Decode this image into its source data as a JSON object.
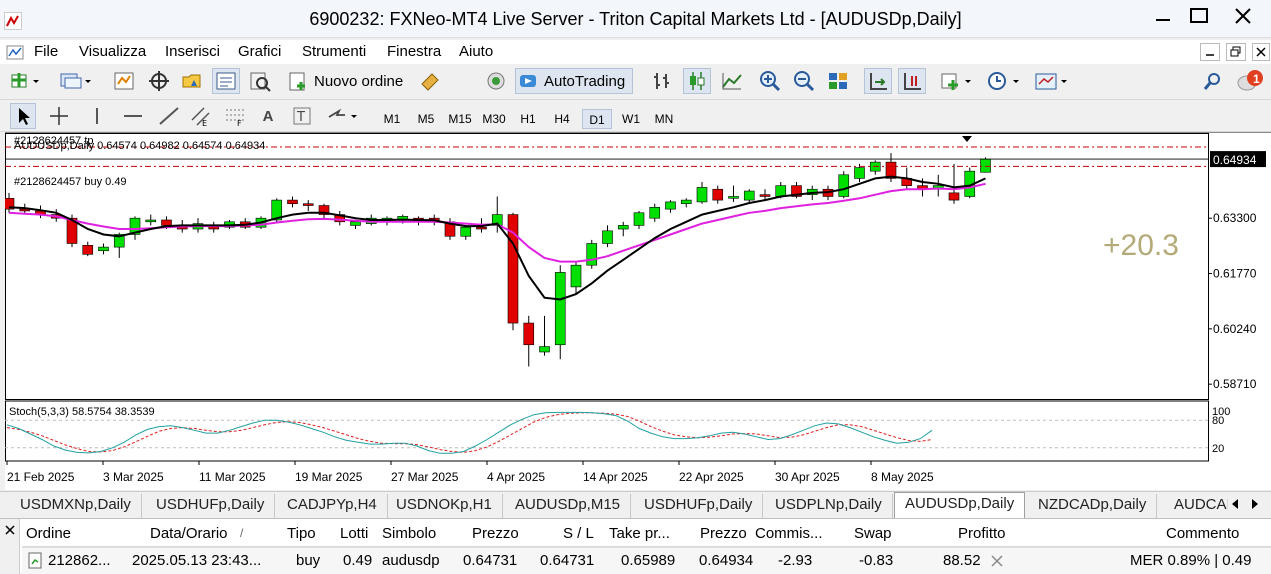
{
  "window": {
    "title": "6900232: FXNeo-MT4 Live Server - Triton Capital Markets Ltd - [AUDUSDp,Daily]"
  },
  "menu": [
    "File",
    "Visualizza",
    "Inserisci",
    "Grafici",
    "Strumenti",
    "Finestra",
    "Aiuto"
  ],
  "toolbar": {
    "new_order_label": "Nuovo ordine",
    "autotrading_label": "AutoTrading",
    "notification_count": "1"
  },
  "timeframes": [
    "M1",
    "M5",
    "M15",
    "M30",
    "H1",
    "H4",
    "D1",
    "W1",
    "MN"
  ],
  "selected_timeframe": "D1",
  "chart": {
    "header": "AUDUSDp,Daily  0.64574 0.64982 0.64574 0.64934",
    "order_id_label": "#2128624457 tp",
    "order_line_label": "#2128624457 buy 0.49",
    "current_price": "0.64934",
    "profit_overlay": "+20.3",
    "price_axis": [
      "0.63300",
      "0.61770",
      "0.60240",
      "0.58710"
    ],
    "stoch_label": "Stoch(5,3,3) 58.5754 38.3539",
    "stoch_axis": [
      "100",
      "80",
      "20"
    ],
    "date_axis": [
      "21 Feb 2025",
      "3 Mar 2025",
      "11 Mar 2025",
      "19 Mar 2025",
      "27 Mar 2025",
      "4 Apr 2025",
      "14 Apr 2025",
      "22 Apr 2025",
      "30 Apr 2025",
      "8 May 2025"
    ],
    "colors": {
      "bull": "#00e000",
      "bear": "#e00000",
      "ma_fast": "#000000",
      "ma_slow": "#e020e0",
      "stoch_main": "#20a0a0",
      "stoch_signal": "#e02020",
      "order_line": "#c00000",
      "profit": "#b4aa78"
    }
  },
  "chart_data": {
    "type": "candlestick",
    "symbol": "AUDUSDp",
    "timeframe": "Daily",
    "candles": [
      {
        "o": 0.6385,
        "h": 0.64,
        "l": 0.6345,
        "c": 0.6355
      },
      {
        "o": 0.6355,
        "h": 0.637,
        "l": 0.634,
        "c": 0.635
      },
      {
        "o": 0.635,
        "h": 0.6365,
        "l": 0.633,
        "c": 0.634
      },
      {
        "o": 0.634,
        "h": 0.6355,
        "l": 0.632,
        "c": 0.633
      },
      {
        "o": 0.633,
        "h": 0.634,
        "l": 0.625,
        "c": 0.626
      },
      {
        "o": 0.6255,
        "h": 0.6265,
        "l": 0.6225,
        "c": 0.623
      },
      {
        "o": 0.624,
        "h": 0.626,
        "l": 0.623,
        "c": 0.625
      },
      {
        "o": 0.625,
        "h": 0.629,
        "l": 0.622,
        "c": 0.6285
      },
      {
        "o": 0.6285,
        "h": 0.6335,
        "l": 0.627,
        "c": 0.633
      },
      {
        "o": 0.632,
        "h": 0.634,
        "l": 0.631,
        "c": 0.6325
      },
      {
        "o": 0.6325,
        "h": 0.6335,
        "l": 0.63,
        "c": 0.631
      },
      {
        "o": 0.631,
        "h": 0.6325,
        "l": 0.629,
        "c": 0.63
      },
      {
        "o": 0.63,
        "h": 0.633,
        "l": 0.629,
        "c": 0.6315
      },
      {
        "o": 0.631,
        "h": 0.632,
        "l": 0.629,
        "c": 0.63
      },
      {
        "o": 0.6305,
        "h": 0.6325,
        "l": 0.63,
        "c": 0.632
      },
      {
        "o": 0.632,
        "h": 0.633,
        "l": 0.63,
        "c": 0.6305
      },
      {
        "o": 0.6305,
        "h": 0.6335,
        "l": 0.63,
        "c": 0.633
      },
      {
        "o": 0.6325,
        "h": 0.6385,
        "l": 0.632,
        "c": 0.638
      },
      {
        "o": 0.638,
        "h": 0.639,
        "l": 0.636,
        "c": 0.637
      },
      {
        "o": 0.637,
        "h": 0.638,
        "l": 0.635,
        "c": 0.6365
      },
      {
        "o": 0.6365,
        "h": 0.637,
        "l": 0.633,
        "c": 0.634
      },
      {
        "o": 0.634,
        "h": 0.635,
        "l": 0.631,
        "c": 0.632
      },
      {
        "o": 0.631,
        "h": 0.6325,
        "l": 0.63,
        "c": 0.632
      },
      {
        "o": 0.6315,
        "h": 0.634,
        "l": 0.631,
        "c": 0.633
      },
      {
        "o": 0.632,
        "h": 0.6335,
        "l": 0.631,
        "c": 0.633
      },
      {
        "o": 0.6325,
        "h": 0.634,
        "l": 0.6315,
        "c": 0.6335
      },
      {
        "o": 0.633,
        "h": 0.6335,
        "l": 0.631,
        "c": 0.632
      },
      {
        "o": 0.633,
        "h": 0.634,
        "l": 0.631,
        "c": 0.632
      },
      {
        "o": 0.632,
        "h": 0.633,
        "l": 0.627,
        "c": 0.628
      },
      {
        "o": 0.628,
        "h": 0.631,
        "l": 0.627,
        "c": 0.6305
      },
      {
        "o": 0.6305,
        "h": 0.633,
        "l": 0.629,
        "c": 0.63
      },
      {
        "o": 0.631,
        "h": 0.639,
        "l": 0.629,
        "c": 0.634
      },
      {
        "o": 0.634,
        "h": 0.6345,
        "l": 0.602,
        "c": 0.604
      },
      {
        "o": 0.604,
        "h": 0.606,
        "l": 0.592,
        "c": 0.598
      },
      {
        "o": 0.596,
        "h": 0.606,
        "l": 0.595,
        "c": 0.5975
      },
      {
        "o": 0.598,
        "h": 0.62,
        "l": 0.594,
        "c": 0.618
      },
      {
        "o": 0.614,
        "h": 0.621,
        "l": 0.612,
        "c": 0.62
      },
      {
        "o": 0.62,
        "h": 0.627,
        "l": 0.619,
        "c": 0.626
      },
      {
        "o": 0.626,
        "h": 0.631,
        "l": 0.625,
        "c": 0.6295
      },
      {
        "o": 0.63,
        "h": 0.632,
        "l": 0.628,
        "c": 0.631
      },
      {
        "o": 0.631,
        "h": 0.635,
        "l": 0.63,
        "c": 0.6345
      },
      {
        "o": 0.633,
        "h": 0.637,
        "l": 0.632,
        "c": 0.636
      },
      {
        "o": 0.6355,
        "h": 0.638,
        "l": 0.6345,
        "c": 0.6375
      },
      {
        "o": 0.637,
        "h": 0.6385,
        "l": 0.636,
        "c": 0.638
      },
      {
        "o": 0.6375,
        "h": 0.643,
        "l": 0.637,
        "c": 0.6415
      },
      {
        "o": 0.641,
        "h": 0.642,
        "l": 0.637,
        "c": 0.638
      },
      {
        "o": 0.6385,
        "h": 0.642,
        "l": 0.6375,
        "c": 0.639
      },
      {
        "o": 0.638,
        "h": 0.641,
        "l": 0.637,
        "c": 0.6405
      },
      {
        "o": 0.6395,
        "h": 0.641,
        "l": 0.638,
        "c": 0.639
      },
      {
        "o": 0.639,
        "h": 0.643,
        "l": 0.6385,
        "c": 0.642
      },
      {
        "o": 0.642,
        "h": 0.643,
        "l": 0.6385,
        "c": 0.639
      },
      {
        "o": 0.6395,
        "h": 0.642,
        "l": 0.638,
        "c": 0.641
      },
      {
        "o": 0.641,
        "h": 0.642,
        "l": 0.638,
        "c": 0.639
      },
      {
        "o": 0.639,
        "h": 0.646,
        "l": 0.6385,
        "c": 0.645
      },
      {
        "o": 0.644,
        "h": 0.648,
        "l": 0.643,
        "c": 0.647
      },
      {
        "o": 0.646,
        "h": 0.649,
        "l": 0.645,
        "c": 0.6485
      },
      {
        "o": 0.6485,
        "h": 0.651,
        "l": 0.643,
        "c": 0.644
      },
      {
        "o": 0.644,
        "h": 0.647,
        "l": 0.641,
        "c": 0.642
      },
      {
        "o": 0.642,
        "h": 0.644,
        "l": 0.639,
        "c": 0.641
      },
      {
        "o": 0.641,
        "h": 0.645,
        "l": 0.639,
        "c": 0.642
      },
      {
        "o": 0.64,
        "h": 0.648,
        "l": 0.637,
        "c": 0.638
      },
      {
        "o": 0.639,
        "h": 0.647,
        "l": 0.6385,
        "c": 0.646
      },
      {
        "o": 0.6457,
        "h": 0.6498,
        "l": 0.6457,
        "c": 0.6493
      }
    ],
    "ma_fast": [
      0.636,
      0.6358,
      0.6352,
      0.6345,
      0.6325,
      0.63,
      0.6285,
      0.628,
      0.629,
      0.63,
      0.6308,
      0.631,
      0.631,
      0.631,
      0.631,
      0.6312,
      0.6318,
      0.633,
      0.634,
      0.6345,
      0.6345,
      0.6338,
      0.633,
      0.6325,
      0.6325,
      0.6326,
      0.6325,
      0.6324,
      0.6315,
      0.6308,
      0.6308,
      0.6315,
      0.626,
      0.617,
      0.611,
      0.6105,
      0.612,
      0.615,
      0.6185,
      0.6215,
      0.6245,
      0.6275,
      0.63,
      0.632,
      0.634,
      0.635,
      0.636,
      0.6372,
      0.638,
      0.639,
      0.6395,
      0.64,
      0.6402,
      0.641,
      0.6425,
      0.644,
      0.6445,
      0.644,
      0.643,
      0.6425,
      0.6415,
      0.642,
      0.644
    ],
    "ma_slow": [
      0.6345,
      0.6342,
      0.634,
      0.6335,
      0.6325,
      0.6315,
      0.6307,
      0.63,
      0.63,
      0.6302,
      0.6305,
      0.6307,
      0.6308,
      0.6308,
      0.6308,
      0.631,
      0.6312,
      0.6318,
      0.6323,
      0.6327,
      0.6328,
      0.6326,
      0.6323,
      0.632,
      0.632,
      0.632,
      0.632,
      0.632,
      0.6318,
      0.6315,
      0.6312,
      0.6313,
      0.629,
      0.625,
      0.622,
      0.621,
      0.621,
      0.6215,
      0.6225,
      0.624,
      0.6255,
      0.627,
      0.6285,
      0.63,
      0.6315,
      0.6325,
      0.6335,
      0.6345,
      0.635,
      0.6358,
      0.6363,
      0.6368,
      0.6372,
      0.6378,
      0.6385,
      0.6395,
      0.6405,
      0.641,
      0.641,
      0.6412,
      0.641,
      0.6415,
      0.6425
    ],
    "stoch_main": [
      70,
      62,
      50,
      38,
      24,
      15,
      10,
      9,
      12,
      20,
      32,
      48,
      60,
      66,
      68,
      64,
      58,
      52,
      52,
      58,
      66,
      74,
      80,
      80,
      76,
      70,
      62,
      54,
      44,
      36,
      32,
      28,
      28,
      30,
      30,
      24,
      14,
      8,
      8,
      12,
      24,
      38,
      54,
      70,
      82,
      92,
      96,
      97,
      97,
      97,
      96,
      94,
      90,
      78,
      62,
      52,
      44,
      40,
      40,
      42,
      46,
      52,
      54,
      50,
      44,
      38,
      40,
      48,
      58,
      68,
      74,
      72,
      64,
      54,
      44,
      36,
      30,
      32,
      40,
      58
    ],
    "stoch_signal": [
      64,
      60,
      54,
      46,
      36,
      26,
      18,
      12,
      11,
      14,
      22,
      33,
      45,
      56,
      62,
      64,
      62,
      58,
      55,
      55,
      58,
      64,
      70,
      75,
      77,
      75,
      70,
      64,
      56,
      48,
      40,
      34,
      30,
      29,
      29,
      27,
      22,
      16,
      12,
      10,
      14,
      22,
      34,
      48,
      62,
      76,
      86,
      92,
      95,
      96,
      96,
      95,
      93,
      88,
      78,
      66,
      56,
      48,
      44,
      42,
      43,
      46,
      50,
      51,
      50,
      46,
      42,
      43,
      48,
      56,
      64,
      70,
      70,
      66,
      58,
      50,
      42,
      36,
      34,
      38
    ],
    "order": {
      "id": "2128624457",
      "type": "buy",
      "lots": 0.49,
      "open_price": 0.64731,
      "current_price": 0.64934
    },
    "price_ticks": [
      0.633,
      0.6177,
      0.6024,
      0.5871
    ],
    "ylim": [
      0.583,
      0.656
    ],
    "stoch_levels": [
      20,
      80
    ]
  },
  "tabs": [
    {
      "label": "USDMXNp,Daily"
    },
    {
      "label": "USDHUFp,Daily"
    },
    {
      "label": "CADJPYp,H4"
    },
    {
      "label": "USDNOKp,H1"
    },
    {
      "label": "AUDUSDp,M15"
    },
    {
      "label": "USDHUFp,Daily"
    },
    {
      "label": "USDPLNp,Daily"
    },
    {
      "label": "AUDUSDp,Daily"
    },
    {
      "label": "NZDCADp,Daily"
    },
    {
      "label": "AUDCAI"
    }
  ],
  "active_tab": "AUDUSDp,Daily",
  "terminal": {
    "headers": [
      "Ordine",
      "Data/Orario",
      "Tipo",
      "Lotti",
      "Simbolo",
      "Prezzo",
      "S / L",
      "Take pr...",
      "Prezzo",
      "Commis...",
      "Swap",
      "Profitto",
      "Commento"
    ],
    "row": [
      "212862...",
      "2025.05.13 23:43...",
      "buy",
      "0.49",
      "audusdp",
      "0.64731",
      "0.64731",
      "0.65989",
      "0.64934",
      "-2.93",
      "-0.83",
      "88.52",
      "MER 0.89% | 0.49"
    ]
  }
}
